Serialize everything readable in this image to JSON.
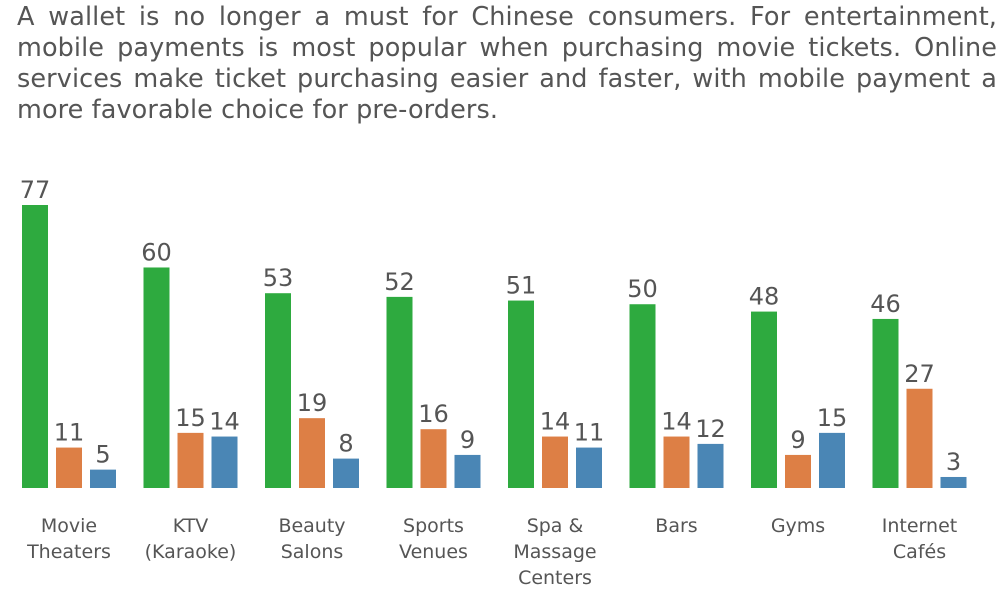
{
  "intro_text": "A wallet is no longer a must for Chinese consumers. For entertainment, mobile payments is most popular when purchasing movie tickets. Online services make ticket purchasing easier and faster, with mobile payment a more favorable choice for pre-orders.",
  "chart_data": {
    "type": "bar",
    "categories": [
      [
        "Movie",
        "Theaters"
      ],
      [
        "KTV",
        "(Karaoke)"
      ],
      [
        "Beauty",
        "Salons"
      ],
      [
        "Sports",
        "Venues"
      ],
      [
        "Spa &",
        "Massage",
        "Centers"
      ],
      [
        "Bars"
      ],
      [
        "Gyms"
      ],
      [
        "Internet",
        "Cafés"
      ]
    ],
    "series": [
      {
        "values": [
          77,
          60,
          53,
          52,
          51,
          50,
          48,
          46
        ],
        "color": "#2eaa3f"
      },
      {
        "values": [
          11,
          15,
          19,
          16,
          14,
          14,
          9,
          27
        ],
        "color": "#dd7f45"
      },
      {
        "values": [
          5,
          14,
          8,
          9,
          11,
          12,
          15,
          3
        ],
        "color": "#4a86b5"
      }
    ],
    "title": "",
    "xlabel": "",
    "ylabel": "",
    "ylim": [
      0,
      77
    ],
    "grid": false,
    "legend": "none"
  }
}
